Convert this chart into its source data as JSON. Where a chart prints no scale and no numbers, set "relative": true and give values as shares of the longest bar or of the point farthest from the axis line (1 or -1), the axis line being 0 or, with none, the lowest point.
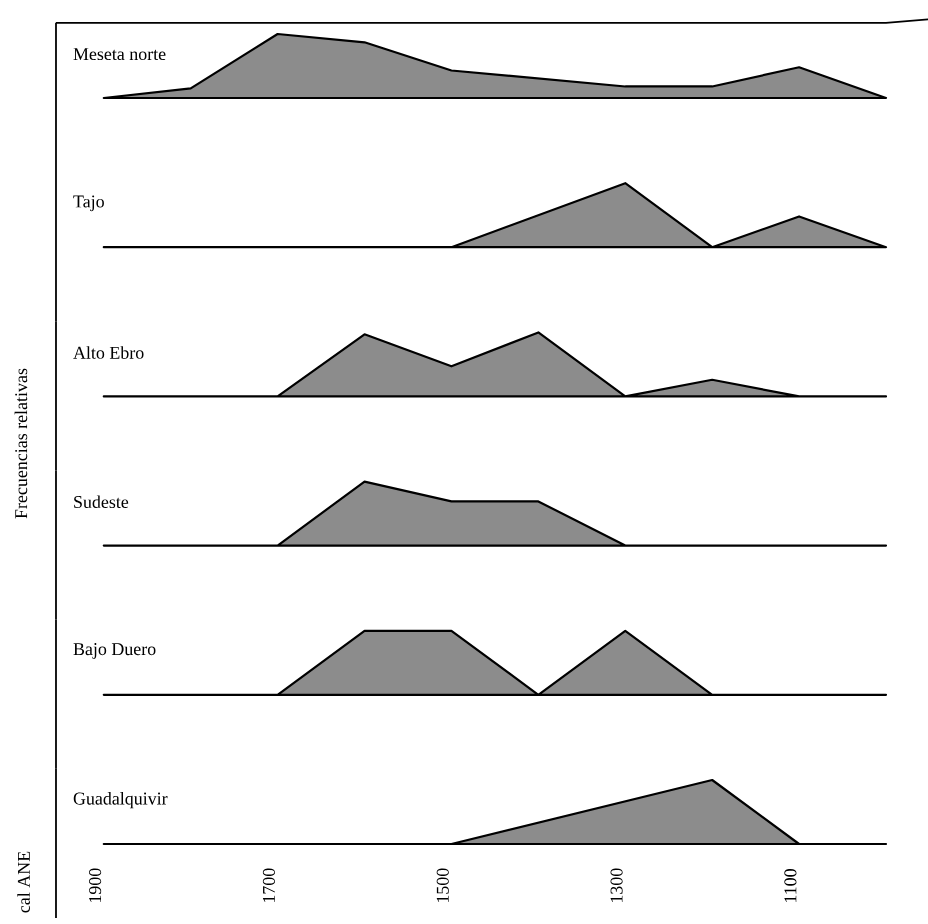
{
  "chart_data": [
    {
      "type": "area",
      "title": "Meseta norte",
      "relative": true,
      "color": "#8c8c8c",
      "xlim": [
        1945,
        990
      ],
      "xticks": [
        1900,
        1700,
        1500,
        1300,
        1100
      ],
      "tick_labels": false,
      "x": [
        1890,
        1790,
        1690,
        1590,
        1490,
        1290,
        1190,
        1090,
        990
      ],
      "values": [
        0,
        0.15,
        1,
        0.87,
        0.43,
        0.18,
        0.18,
        0.48,
        0
      ]
    },
    {
      "type": "area",
      "title": "Tajo",
      "relative": true,
      "color": "#8c8c8c",
      "xlim": [
        1945,
        990
      ],
      "xticks": [
        1900,
        1700,
        1500,
        1300,
        1100
      ],
      "tick_labels": false,
      "x": [
        1890,
        1490,
        1290,
        1190,
        1090,
        990
      ],
      "values": [
        0,
        0,
        1,
        0,
        0.48,
        0
      ]
    },
    {
      "type": "area",
      "title": "Alto Ebro",
      "ylabel": "Frecuencias relativas",
      "relative": true,
      "color": "#8c8c8c",
      "xlim": [
        1945,
        990
      ],
      "xticks": [
        1900,
        1700,
        1500,
        1300,
        1100
      ],
      "tick_labels": false,
      "x": [
        1890,
        1690,
        1590,
        1490,
        1390,
        1290,
        1190,
        1090,
        990
      ],
      "values": [
        0,
        0,
        0.97,
        0.47,
        1,
        0,
        0.26,
        0,
        0
      ]
    },
    {
      "type": "area",
      "title": "Sudeste",
      "relative": true,
      "color": "#8c8c8c",
      "xlim": [
        1945,
        990
      ],
      "xticks": [
        1900,
        1700,
        1500,
        1300,
        1100
      ],
      "tick_labels": false,
      "x": [
        1890,
        1690,
        1590,
        1490,
        1390,
        1290,
        990
      ],
      "values": [
        0,
        0,
        1,
        0.69,
        0.69,
        0,
        0
      ]
    },
    {
      "type": "area",
      "title": "Bajo Duero",
      "relative": true,
      "color": "#8c8c8c",
      "xlim": [
        1945,
        990
      ],
      "xticks": [
        1900,
        1700,
        1500,
        1300,
        1100
      ],
      "tick_labels": false,
      "x": [
        1890,
        1690,
        1590,
        1490,
        1390,
        1290,
        1190,
        990
      ],
      "values": [
        0,
        0,
        1,
        1,
        0,
        1,
        0,
        0
      ]
    },
    {
      "type": "area",
      "title": "Guadalquivir",
      "relative": true,
      "color": "#8c8c8c",
      "xlim": [
        1945,
        990
      ],
      "xticks": [
        1900,
        1700,
        1500,
        1300,
        1100
      ],
      "annotations": [
        "cal ANE"
      ],
      "x": [
        1890,
        1490,
        1190,
        1090,
        990
      ],
      "values": [
        0,
        0,
        1,
        0,
        0
      ]
    }
  ]
}
